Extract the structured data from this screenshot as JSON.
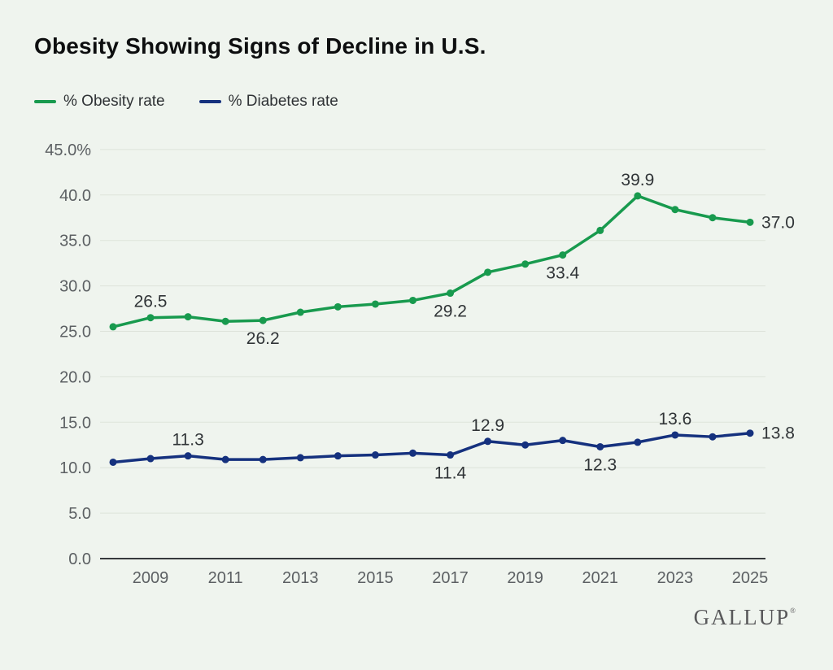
{
  "title": "Obesity Showing Signs of Decline in U.S.",
  "legend": {
    "items": [
      {
        "label": "% Obesity rate",
        "color": "#189a4e"
      },
      {
        "label": "% Diabetes rate",
        "color": "#15317e"
      }
    ]
  },
  "branding": {
    "logo_text": "GALLUP",
    "trademark": "®"
  },
  "chart_data": {
    "type": "line",
    "title": "Obesity Showing Signs of Decline in U.S.",
    "x": [
      2008,
      2009,
      2010,
      2011,
      2012,
      2013,
      2014,
      2015,
      2016,
      2017,
      2018,
      2019,
      2020,
      2021,
      2022,
      2023,
      2024,
      2025
    ],
    "x_ticks": [
      2009,
      2011,
      2013,
      2015,
      2017,
      2019,
      2021,
      2023,
      2025
    ],
    "x_tick_labels": [
      "2009",
      "2011",
      "2013",
      "2015",
      "2017",
      "2019",
      "2021",
      "2023",
      "2025"
    ],
    "y_ticks": [
      45,
      40,
      35,
      30,
      25,
      20,
      15,
      10,
      5,
      0
    ],
    "y_tick_labels": [
      "45.0%",
      "40.0",
      "35.0",
      "30.0",
      "25.0",
      "20.0",
      "15.0",
      "10.0",
      "5.0",
      "0.0"
    ],
    "ylim": [
      0,
      45
    ],
    "grid": true,
    "legend_position": "top-left",
    "series": [
      {
        "name": "% Obesity rate",
        "color": "#189a4e",
        "values": [
          25.5,
          26.5,
          26.6,
          26.1,
          26.2,
          27.1,
          27.7,
          28.0,
          28.4,
          29.2,
          31.5,
          32.4,
          33.4,
          36.1,
          39.9,
          38.4,
          37.5,
          37.0
        ]
      },
      {
        "name": "% Diabetes rate",
        "color": "#15317e",
        "values": [
          10.6,
          11.0,
          11.3,
          10.9,
          10.9,
          11.1,
          11.3,
          11.4,
          11.6,
          11.4,
          12.9,
          12.5,
          13.0,
          12.3,
          12.8,
          13.6,
          13.4,
          13.8
        ]
      }
    ],
    "annotations": [
      {
        "series": 0,
        "year": 2009,
        "text": "26.5",
        "placement": "above"
      },
      {
        "series": 0,
        "year": 2012,
        "text": "26.2",
        "placement": "below"
      },
      {
        "series": 0,
        "year": 2017,
        "text": "29.2",
        "placement": "below"
      },
      {
        "series": 0,
        "year": 2020,
        "text": "33.4",
        "placement": "below"
      },
      {
        "series": 0,
        "year": 2022,
        "text": "39.9",
        "placement": "above"
      },
      {
        "series": 0,
        "year": 2025,
        "text": "37.0",
        "placement": "right"
      },
      {
        "series": 1,
        "year": 2010,
        "text": "11.3",
        "placement": "above"
      },
      {
        "series": 1,
        "year": 2017,
        "text": "11.4",
        "placement": "below"
      },
      {
        "series": 1,
        "year": 2018,
        "text": "12.9",
        "placement": "above"
      },
      {
        "series": 1,
        "year": 2021,
        "text": "12.3",
        "placement": "below"
      },
      {
        "series": 1,
        "year": 2023,
        "text": "13.6",
        "placement": "above"
      },
      {
        "series": 1,
        "year": 2025,
        "text": "13.8",
        "placement": "right"
      }
    ],
    "colors": {
      "background": "#eff4ee",
      "gridline": "#dde3da",
      "axis_line": "#36393c",
      "tick_text": "#5c6063",
      "data_label_text": "#303437"
    }
  }
}
